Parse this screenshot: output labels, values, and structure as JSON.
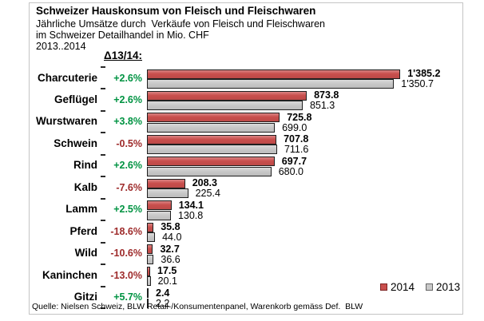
{
  "header": {
    "title": "Schweizer Hauskonsum von Fleisch und Fleischwaren",
    "subtitle1": "Jährliche Umsätze durch  Verkäufe von Fleisch und Fleischwaren",
    "subtitle2": "im Schweizer Detailhandel in Mio. CHF",
    "subtitle3": "2013..2014",
    "delta_column_header": "Δ13/14:"
  },
  "chart_data": {
    "type": "bar",
    "orientation": "horizontal",
    "unit": "Mio. CHF",
    "xlim": [
      0,
      1500
    ],
    "grid": false,
    "legend_position": "bottom-right",
    "legend": [
      "2014",
      "2013"
    ],
    "categories": [
      "Charcuterie",
      "Geflügel",
      "Wurstwaren",
      "Schwein",
      "Rind",
      "Kalb",
      "Lamm",
      "Pferd",
      "Wild",
      "Kaninchen",
      "Gitzi"
    ],
    "deltas": {
      "values": [
        "+2.6%",
        "+2.6%",
        "+3.8%",
        "-0.5%",
        "+2.6%",
        "-7.6%",
        "+2.5%",
        "-18.6%",
        "-10.6%",
        "-13.0%",
        "+5.7%"
      ],
      "positive_color": "#009342",
      "negative_color": "#9e2b2b"
    },
    "series": [
      {
        "name": "2014",
        "color": "#c94f4d",
        "border_color": "#1f1f1f",
        "values": [
          1385.2,
          873.8,
          725.8,
          707.8,
          697.7,
          208.3,
          134.1,
          35.8,
          32.7,
          17.5,
          2.4
        ],
        "values_display": [
          "1'385.2",
          "873.8",
          "725.8",
          "707.8",
          "697.7",
          "208.3",
          "134.1",
          "35.8",
          "32.7",
          "17.5",
          "2.4"
        ]
      },
      {
        "name": "2013",
        "color": "#c9c9c9",
        "border_color": "#1f1f1f",
        "values": [
          1350.7,
          851.3,
          699.0,
          711.6,
          680.0,
          225.4,
          130.8,
          44.0,
          36.6,
          20.1,
          2.2
        ],
        "values_display": [
          "1'350.7",
          "851.3",
          "699.0",
          "711.6",
          "680.0",
          "225.4",
          "130.8",
          "44.0",
          "36.6",
          "20.1",
          "2.2"
        ]
      }
    ]
  },
  "footer": {
    "source": "Quelle: Nielsen Schweiz, BLW Retail-/Konsumentenpanel, Warenkorb gemäss Def.  BLW"
  }
}
